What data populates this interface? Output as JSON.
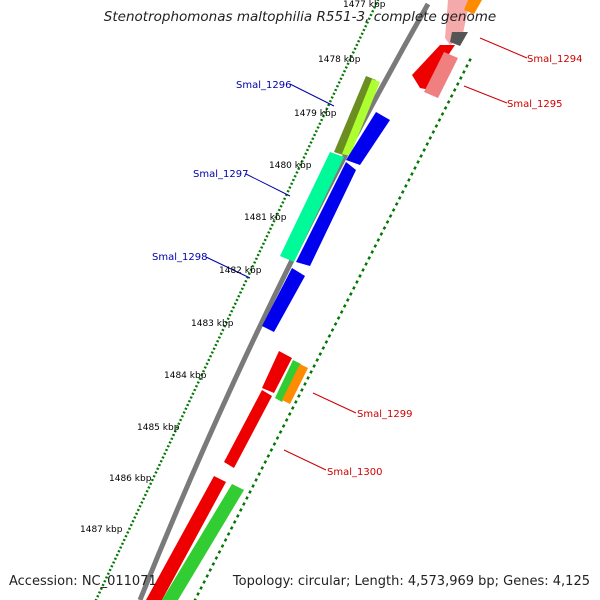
{
  "title": "Stenotrophomonas maltophilia R551-3, complete genome",
  "footer": {
    "accession": "Accession: NC_011071",
    "summary": "Topology: circular; Length: 4,573,969 bp; Genes: 4,125"
  },
  "colors": {
    "backbone": "#808080",
    "forward_cds": "#0000ee",
    "label_blue": "#0000aa",
    "label_red": "#cc0000",
    "ticks": "#007700"
  },
  "ruler": [
    {
      "label": "1477 kbp"
    },
    {
      "label": "1478 kbp"
    },
    {
      "label": "1479 kbp"
    },
    {
      "label": "1480 kbp"
    },
    {
      "label": "1481 kbp"
    },
    {
      "label": "1482 kbp"
    },
    {
      "label": "1483 kbp"
    },
    {
      "label": "1484 kbp"
    },
    {
      "label": "1485 kbp"
    },
    {
      "label": "1486 kbp"
    },
    {
      "label": "1487 kbp"
    }
  ],
  "gene_labels": [
    {
      "text": "Smal_1294",
      "color": "#cc0000"
    },
    {
      "text": "Smal_1295",
      "color": "#cc0000"
    },
    {
      "text": "Smal_1296",
      "color": "#0000aa"
    },
    {
      "text": "Smal_1297",
      "color": "#0000aa"
    },
    {
      "text": "Smal_1298",
      "color": "#0000aa"
    },
    {
      "text": "Smal_1299",
      "color": "#cc0000"
    },
    {
      "text": "Smal_1300",
      "color": "#cc0000"
    }
  ]
}
